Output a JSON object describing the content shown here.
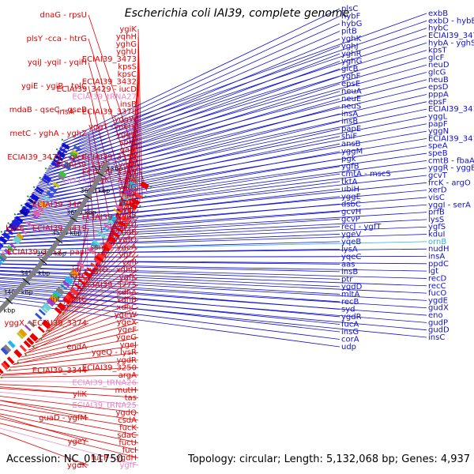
{
  "title": "Escherichia coli IAI39, complete genome",
  "footer": {
    "accession": "Accession: NC_011750",
    "summary": "Topology: circular; Length: 5,132,068 bp; Genes: 4,937"
  },
  "colors": {
    "forward_strand": "#e60000",
    "reverse_strand": "#1010d0",
    "rna_label": "#e888c8",
    "misc_label": "#30b0e0",
    "backbone": "#808080",
    "tick": "#1a9a1a"
  },
  "scale_ticks": [
    "3700 kbp",
    "3650 kbp",
    "3600 kbp",
    "3550 kbp",
    "3500 kbp",
    "3450 kbp",
    "3400 kbp",
    "3350 kbp",
    "3300 kbp",
    "3250 kbp"
  ],
  "left_labels": [
    {
      "text": "dnaG - rpsU",
      "kind": "gene"
    },
    {
      "text": "plsY -cca - htrG",
      "kind": "gene"
    },
    {
      "text": "yqiJ -yqiI - yqiH",
      "kind": "gene"
    },
    {
      "text": "ygiE - ygiB - tolC",
      "kind": "gene"
    },
    {
      "text": "mdaB - qseC - qseB",
      "kind": "gene"
    },
    {
      "text": "metC - yghA - yghZ",
      "kind": "gene"
    },
    {
      "text": "ECIAI39_3471 - glcC",
      "kind": "gene"
    },
    {
      "text": "c0719",
      "kind": "rna"
    },
    {
      "text": "ECIAI39_3461",
      "kind": "gene"
    },
    {
      "text": "kpsE - ECIAI39_3419",
      "kind": "gene"
    },
    {
      "text": "iutA - ECIAI39_3413 - papI",
      "kind": "gene"
    },
    {
      "text": "insC",
      "kind": "gene"
    },
    {
      "text": "int - mltC",
      "kind": "gene"
    },
    {
      "text": "yggX - ECIAI39_3374",
      "kind": "gene"
    },
    {
      "text": "endA",
      "kind": "gene"
    },
    {
      "text": "ECIAI39_3344",
      "kind": "gene"
    },
    {
      "text": "yliK",
      "kind": "gene"
    },
    {
      "text": "guaD - ygfM",
      "kind": "gene"
    },
    {
      "text": "ygeY",
      "kind": "gene"
    },
    {
      "text": "ygdK",
      "kind": "gene"
    }
  ],
  "inner_left_labels": [
    {
      "text": "ygiK",
      "kind": "gene"
    },
    {
      "text": "yqhH",
      "kind": "gene"
    },
    {
      "text": "yghG",
      "kind": "gene"
    },
    {
      "text": "yghU",
      "kind": "gene"
    },
    {
      "text": "ECIAI39_3473",
      "kind": "gene"
    },
    {
      "text": "kpsS",
      "kind": "gene"
    },
    {
      "text": "kpsC",
      "kind": "gene"
    },
    {
      "text": "ECIAI39_3432",
      "kind": "gene"
    },
    {
      "text": "ECIAI39_3429 - iucD",
      "kind": "gene"
    },
    {
      "text": "ECIAI39_tRNA27",
      "kind": "rna"
    },
    {
      "text": "insB",
      "kind": "gene"
    },
    {
      "text": "insA - ECIAI39_3378",
      "kind": "gene"
    },
    {
      "text": "yggW",
      "kind": "gene"
    },
    {
      "text": "yggT - metK",
      "kind": "gene"
    },
    {
      "text": "yggU",
      "kind": "gene"
    },
    {
      "text": "sprT",
      "kind": "gene"
    },
    {
      "text": "galP",
      "kind": "gene"
    },
    {
      "text": "ECIAI39_3353",
      "kind": "gene"
    },
    {
      "text": "ECIAI39_3342 - ygfH",
      "kind": "gene"
    },
    {
      "text": "ECIAI39_3343",
      "kind": "gene"
    },
    {
      "text": "argK - zapA",
      "kind": "gene"
    },
    {
      "text": "ygfG",
      "kind": "gene"
    },
    {
      "text": "bglA",
      "kind": "gene"
    },
    {
      "text": "ygfA",
      "kind": "gene"
    },
    {
      "text": "argP",
      "kind": "gene"
    },
    {
      "text": "ECIAI39_3302",
      "kind": "gene"
    },
    {
      "text": "ygfU",
      "kind": "gene"
    },
    {
      "text": "fldB",
      "kind": "gene"
    },
    {
      "text": "ygfO",
      "kind": "gene"
    },
    {
      "text": "ssnA - ygeA",
      "kind": "gene"
    },
    {
      "text": "ygfZ",
      "kind": "gene"
    },
    {
      "text": "ygfI",
      "kind": "gene"
    },
    {
      "text": "idi - ygfO - xdhD",
      "kind": "gene"
    },
    {
      "text": "ygfK",
      "kind": "gene"
    },
    {
      "text": "ECIAI39_3275",
      "kind": "gene"
    },
    {
      "text": "xdhA",
      "kind": "gene"
    },
    {
      "text": "xdhB",
      "kind": "gene"
    },
    {
      "text": "xdhC",
      "kind": "gene"
    },
    {
      "text": "ygeW",
      "kind": "gene"
    },
    {
      "text": "ygeX",
      "kind": "gene"
    },
    {
      "text": "ygeF",
      "kind": "gene"
    },
    {
      "text": "ygeG",
      "kind": "gene"
    },
    {
      "text": "ygeJ",
      "kind": "gene"
    },
    {
      "text": "ygeQ - lysR",
      "kind": "gene"
    },
    {
      "text": "ygdR",
      "kind": "gene"
    },
    {
      "text": "ECIAI39_3250",
      "kind": "gene"
    },
    {
      "text": "argA",
      "kind": "gene"
    },
    {
      "text": "ECIAI39_tRNA26",
      "kind": "rna"
    },
    {
      "text": "mutH",
      "kind": "gene"
    },
    {
      "text": "tas",
      "kind": "gene"
    },
    {
      "text": "ECIAI39_tRNA25",
      "kind": "rna"
    },
    {
      "text": "ygdQ",
      "kind": "gene"
    },
    {
      "text": "csdA",
      "kind": "gene"
    },
    {
      "text": "fucK",
      "kind": "gene"
    },
    {
      "text": "sdaC",
      "kind": "gene"
    },
    {
      "text": "fucU",
      "kind": "gene"
    },
    {
      "text": "fucI",
      "kind": "gene"
    },
    {
      "text": "fucP - ygdH",
      "kind": "gene"
    },
    {
      "text": "ygfF",
      "kind": "rna"
    }
  ],
  "right_labels": [
    {
      "text": "plsC",
      "kind": "gene"
    },
    {
      "text": "exbB",
      "kind": "gene"
    },
    {
      "text": "hybF",
      "kind": "gene"
    },
    {
      "text": "exbD - hybB - gss",
      "kind": "gene"
    },
    {
      "text": "hybG",
      "kind": "gene"
    },
    {
      "text": "hybC",
      "kind": "gene"
    },
    {
      "text": "pitB",
      "kind": "gene"
    },
    {
      "text": "ECIAI39_3477",
      "kind": "gene"
    },
    {
      "text": "yghK",
      "kind": "gene"
    },
    {
      "text": "hybA - yghS",
      "kind": "gene"
    },
    {
      "text": "yghJ",
      "kind": "gene"
    },
    {
      "text": "kpsT",
      "kind": "gene"
    },
    {
      "text": "yghR",
      "kind": "gene"
    },
    {
      "text": "glcF",
      "kind": "gene"
    },
    {
      "text": "yghG",
      "kind": "gene"
    },
    {
      "text": "neuD",
      "kind": "gene"
    },
    {
      "text": "glcB",
      "kind": "gene"
    },
    {
      "text": "glcG",
      "kind": "gene"
    },
    {
      "text": "yghF",
      "kind": "gene"
    },
    {
      "text": "neuB",
      "kind": "gene"
    },
    {
      "text": "epsE",
      "kind": "gene"
    },
    {
      "text": "epsD",
      "kind": "gene"
    },
    {
      "text": "neuA",
      "kind": "gene"
    },
    {
      "text": "pppA",
      "kind": "gene"
    },
    {
      "text": "neuE",
      "kind": "gene"
    },
    {
      "text": "epsF",
      "kind": "gene"
    },
    {
      "text": "neuS",
      "kind": "gene"
    },
    {
      "text": "ECIAI39_3414",
      "kind": "gene"
    },
    {
      "text": "insA",
      "kind": "gene"
    },
    {
      "text": "yggL",
      "kind": "gene"
    },
    {
      "text": "insB",
      "kind": "gene"
    },
    {
      "text": "papF",
      "kind": "gene"
    },
    {
      "text": "papE",
      "kind": "gene"
    },
    {
      "text": "yggN",
      "kind": "gene"
    },
    {
      "text": "shiF",
      "kind": "gene"
    },
    {
      "text": "ECIAI39_3416",
      "kind": "gene"
    },
    {
      "text": "ansB",
      "kind": "gene"
    },
    {
      "text": "speA",
      "kind": "gene"
    },
    {
      "text": "yggM",
      "kind": "gene"
    },
    {
      "text": "speB",
      "kind": "gene"
    },
    {
      "text": "pgk",
      "kind": "gene"
    },
    {
      "text": "cmtB - fbaA",
      "kind": "gene"
    },
    {
      "text": "ygfB",
      "kind": "gene"
    },
    {
      "text": "yggR - yggB",
      "kind": "gene"
    },
    {
      "text": "cmtA - mscS",
      "kind": "gene"
    },
    {
      "text": "gcvT",
      "kind": "gene"
    },
    {
      "text": "tktA",
      "kind": "gene"
    },
    {
      "text": "frcK - argO",
      "kind": "gene"
    },
    {
      "text": "ubiH",
      "kind": "gene"
    },
    {
      "text": "xerD",
      "kind": "gene"
    },
    {
      "text": "yggE",
      "kind": "gene"
    },
    {
      "text": "visC",
      "kind": "gene"
    },
    {
      "text": "dsbC",
      "kind": "gene"
    },
    {
      "text": "yggI - serA",
      "kind": "gene"
    },
    {
      "text": "gcvH",
      "kind": "gene"
    },
    {
      "text": "prfB",
      "kind": "gene"
    },
    {
      "text": "gcvP",
      "kind": "gene"
    },
    {
      "text": "lysS",
      "kind": "gene"
    },
    {
      "text": "recJ - ygfT",
      "kind": "gene"
    },
    {
      "text": "ygfS",
      "kind": "gene"
    },
    {
      "text": "ygeV",
      "kind": "gene"
    },
    {
      "text": "kduI",
      "kind": "gene"
    },
    {
      "text": "yqeB",
      "kind": "gene"
    },
    {
      "text": "ornB",
      "kind": "misc"
    },
    {
      "text": "lysA",
      "kind": "gene"
    },
    {
      "text": "nudH",
      "kind": "gene"
    },
    {
      "text": "yqeC",
      "kind": "gene"
    },
    {
      "text": "insA",
      "kind": "gene"
    },
    {
      "text": "aas",
      "kind": "gene"
    },
    {
      "text": "ppdC",
      "kind": "gene"
    },
    {
      "text": "insB",
      "kind": "gene"
    },
    {
      "text": "lgt",
      "kind": "gene"
    },
    {
      "text": "ptr",
      "kind": "gene"
    },
    {
      "text": "recD",
      "kind": "gene"
    },
    {
      "text": "ygdD",
      "kind": "gene"
    },
    {
      "text": "recC",
      "kind": "gene"
    },
    {
      "text": "mltA",
      "kind": "gene"
    },
    {
      "text": "fucO",
      "kind": "gene"
    },
    {
      "text": "recB",
      "kind": "gene"
    },
    {
      "text": "ygdE",
      "kind": "gene"
    },
    {
      "text": "syd",
      "kind": "gene"
    },
    {
      "text": "gudX",
      "kind": "gene"
    },
    {
      "text": "ygdR",
      "kind": "gene"
    },
    {
      "text": "eno",
      "kind": "gene"
    },
    {
      "text": "fucA",
      "kind": "gene"
    },
    {
      "text": "gudP",
      "kind": "gene"
    },
    {
      "text": "insG",
      "kind": "gene"
    },
    {
      "text": "gudD",
      "kind": "gene"
    },
    {
      "text": "corA",
      "kind": "gene"
    },
    {
      "text": "insC",
      "kind": "gene"
    },
    {
      "text": "udp",
      "kind": "gene"
    }
  ]
}
